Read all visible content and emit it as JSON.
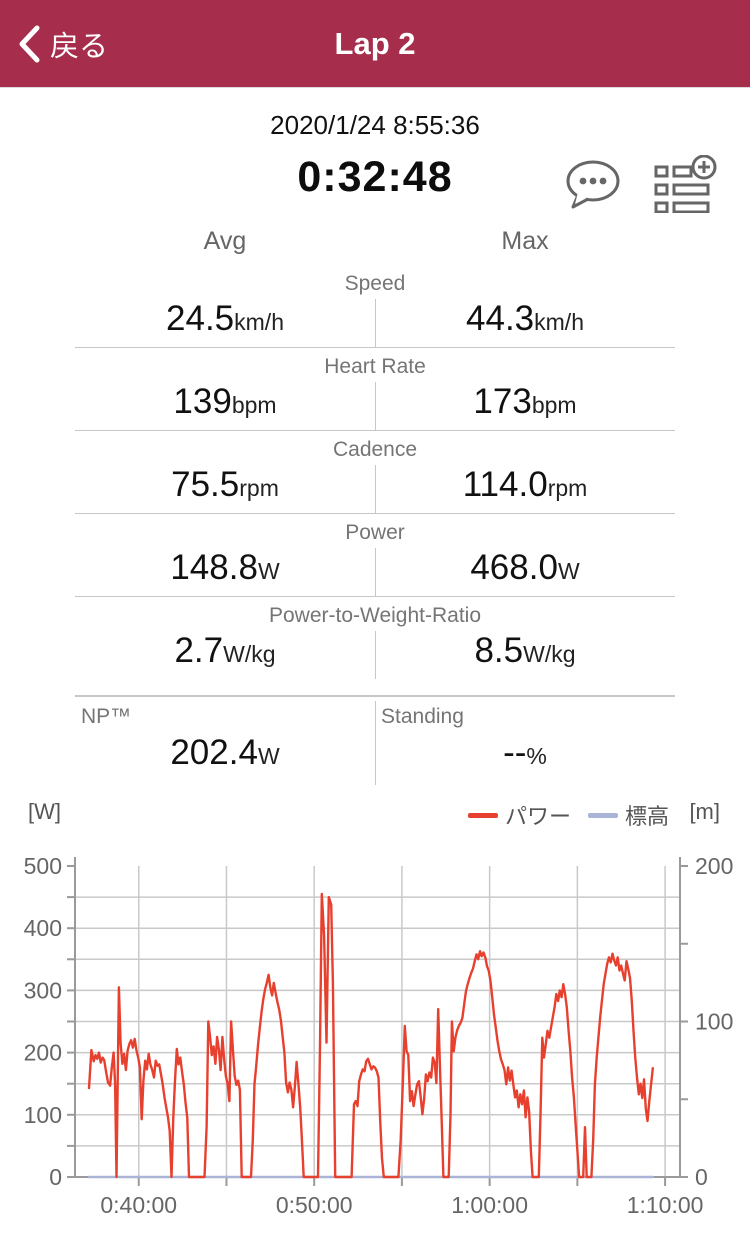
{
  "header": {
    "back_label": "戻る",
    "title": "Lap 2"
  },
  "summary": {
    "datetime": "2020/1/24 8:55:36",
    "duration": "0:32:48"
  },
  "columns": {
    "avg": "Avg",
    "max": "Max"
  },
  "metrics": [
    {
      "label": "Speed",
      "avg": "24.5",
      "avg_unit": "km/h",
      "max": "44.3",
      "max_unit": "km/h"
    },
    {
      "label": "Heart Rate",
      "avg": "139",
      "avg_unit": "bpm",
      "max": "173",
      "max_unit": "bpm"
    },
    {
      "label": "Cadence",
      "avg": "75.5",
      "avg_unit": "rpm",
      "max": "114.0",
      "max_unit": "rpm"
    },
    {
      "label": "Power",
      "avg": "148.8",
      "avg_unit": "W",
      "max": "468.0",
      "max_unit": "W"
    },
    {
      "label": "Power-to-Weight-Ratio",
      "avg": "2.7",
      "avg_unit": "W/kg",
      "max": "8.5",
      "max_unit": "W/kg"
    }
  ],
  "extra": {
    "np_label": "NP™",
    "np_value": "202.4",
    "np_unit": "W",
    "standing_label": "Standing",
    "standing_value": "--",
    "standing_unit": "%"
  },
  "icons": {
    "comment": "comment-bubble",
    "add_lap_field": "list-add"
  },
  "colors": {
    "header_bg": "#a62d4c",
    "power_line": "#e8402e",
    "elevation_line": "#a9b4d6",
    "gridline": "#c9c9c9",
    "axis": "#9a9a9a"
  },
  "chart_data": {
    "type": "line",
    "left_axis": {
      "label": "[W]",
      "min": 0,
      "max": 500,
      "major_ticks": [
        0,
        100,
        200,
        300,
        400,
        500
      ],
      "gridline_step": 50
    },
    "right_axis": {
      "label": "[m]",
      "min": 0,
      "max": 200,
      "labeled_ticks": [
        0,
        100,
        200
      ],
      "tick_step": 50
    },
    "x_axis": {
      "labels": [
        "0:40:00",
        "0:50:00",
        "1:00:00",
        "1:10:00"
      ],
      "label_seconds": [
        2400,
        3000,
        3600,
        4200
      ],
      "gridline_step_seconds": 300,
      "domain_seconds": [
        2182,
        4251
      ]
    },
    "legend": [
      {
        "name": "パワー",
        "color": "#e8402e"
      },
      {
        "name": "標高",
        "color": "#a9b4d6"
      }
    ],
    "series": [
      {
        "name": "パワー",
        "unit": "W",
        "color": "#e8402e",
        "points": [
          [
            2230,
            143
          ],
          [
            2238,
            204
          ],
          [
            2246,
            186
          ],
          [
            2252,
            196
          ],
          [
            2258,
            190
          ],
          [
            2264,
            200
          ],
          [
            2270,
            184
          ],
          [
            2276,
            192
          ],
          [
            2282,
            188
          ],
          [
            2288,
            170
          ],
          [
            2295,
            152
          ],
          [
            2302,
            147
          ],
          [
            2308,
            176
          ],
          [
            2314,
            200
          ],
          [
            2319,
            150
          ],
          [
            2324,
            0
          ],
          [
            2332,
            305
          ],
          [
            2338,
            215
          ],
          [
            2344,
            182
          ],
          [
            2350,
            198
          ],
          [
            2356,
            172
          ],
          [
            2362,
            203
          ],
          [
            2368,
            214
          ],
          [
            2374,
            220
          ],
          [
            2380,
            208
          ],
          [
            2386,
            222
          ],
          [
            2392,
            204
          ],
          [
            2398,
            192
          ],
          [
            2404,
            176
          ],
          [
            2410,
            93
          ],
          [
            2416,
            155
          ],
          [
            2422,
            187
          ],
          [
            2428,
            173
          ],
          [
            2434,
            198
          ],
          [
            2440,
            181
          ],
          [
            2446,
            172
          ],
          [
            2452,
            160
          ],
          [
            2458,
            187
          ],
          [
            2464,
            179
          ],
          [
            2470,
            181
          ],
          [
            2476,
            165
          ],
          [
            2482,
            149
          ],
          [
            2488,
            128
          ],
          [
            2494,
            112
          ],
          [
            2500,
            96
          ],
          [
            2506,
            74
          ],
          [
            2512,
            0
          ],
          [
            2518,
            96
          ],
          [
            2524,
            155
          ],
          [
            2530,
            206
          ],
          [
            2536,
            181
          ],
          [
            2542,
            192
          ],
          [
            2548,
            170
          ],
          [
            2554,
            149
          ],
          [
            2560,
            120
          ],
          [
            2566,
            95
          ],
          [
            2572,
            0
          ],
          [
            2600,
            0
          ],
          [
            2625,
            0
          ],
          [
            2632,
            80
          ],
          [
            2638,
            250
          ],
          [
            2644,
            225
          ],
          [
            2650,
            196
          ],
          [
            2656,
            210
          ],
          [
            2662,
            182
          ],
          [
            2668,
            225
          ],
          [
            2674,
            205
          ],
          [
            2680,
            172
          ],
          [
            2686,
            225
          ],
          [
            2692,
            190
          ],
          [
            2698,
            162
          ],
          [
            2704,
            150
          ],
          [
            2710,
            122
          ],
          [
            2716,
            250
          ],
          [
            2722,
            205
          ],
          [
            2728,
            162
          ],
          [
            2734,
            148
          ],
          [
            2740,
            155
          ],
          [
            2746,
            140
          ],
          [
            2752,
            0
          ],
          [
            2770,
            0
          ],
          [
            2784,
            0
          ],
          [
            2790,
            60
          ],
          [
            2796,
            150
          ],
          [
            2802,
            180
          ],
          [
            2808,
            212
          ],
          [
            2814,
            240
          ],
          [
            2820,
            266
          ],
          [
            2826,
            286
          ],
          [
            2832,
            302
          ],
          [
            2838,
            312
          ],
          [
            2844,
            325
          ],
          [
            2850,
            305
          ],
          [
            2856,
            292
          ],
          [
            2862,
            312
          ],
          [
            2868,
            296
          ],
          [
            2874,
            282
          ],
          [
            2880,
            270
          ],
          [
            2886,
            252
          ],
          [
            2892,
            226
          ],
          [
            2898,
            200
          ],
          [
            2904,
            152
          ],
          [
            2910,
            136
          ],
          [
            2916,
            152
          ],
          [
            2922,
            140
          ],
          [
            2928,
            112
          ],
          [
            2934,
            146
          ],
          [
            2940,
            185
          ],
          [
            2946,
            150
          ],
          [
            2952,
            112
          ],
          [
            2958,
            60
          ],
          [
            2964,
            0
          ],
          [
            2985,
            0
          ],
          [
            3013,
            0
          ],
          [
            3020,
            210
          ],
          [
            3026,
            455
          ],
          [
            3034,
            388
          ],
          [
            3042,
            216
          ],
          [
            3050,
            450
          ],
          [
            3058,
            438
          ],
          [
            3064,
            312
          ],
          [
            3072,
            0
          ],
          [
            3100,
            0
          ],
          [
            3128,
            0
          ],
          [
            3136,
            117
          ],
          [
            3142,
            122
          ],
          [
            3148,
            114
          ],
          [
            3154,
            154
          ],
          [
            3160,
            165
          ],
          [
            3166,
            173
          ],
          [
            3172,
            170
          ],
          [
            3178,
            186
          ],
          [
            3184,
            190
          ],
          [
            3190,
            181
          ],
          [
            3196,
            173
          ],
          [
            3202,
            178
          ],
          [
            3208,
            176
          ],
          [
            3214,
            170
          ],
          [
            3220,
            160
          ],
          [
            3226,
            87
          ],
          [
            3232,
            30
          ],
          [
            3238,
            0
          ],
          [
            3262,
            0
          ],
          [
            3288,
            0
          ],
          [
            3296,
            60
          ],
          [
            3303,
            150
          ],
          [
            3310,
            243
          ],
          [
            3316,
            202
          ],
          [
            3322,
            196
          ],
          [
            3328,
            122
          ],
          [
            3334,
            138
          ],
          [
            3340,
            114
          ],
          [
            3346,
            133
          ],
          [
            3352,
            149
          ],
          [
            3358,
            154
          ],
          [
            3364,
            130
          ],
          [
            3370,
            101
          ],
          [
            3376,
            125
          ],
          [
            3382,
            165
          ],
          [
            3388,
            154
          ],
          [
            3394,
            168
          ],
          [
            3400,
            160
          ],
          [
            3406,
            192
          ],
          [
            3412,
            184
          ],
          [
            3418,
            151
          ],
          [
            3424,
            270
          ],
          [
            3430,
            180
          ],
          [
            3436,
            90
          ],
          [
            3442,
            0
          ],
          [
            3452,
            0
          ],
          [
            3460,
            0
          ],
          [
            3466,
            100
          ],
          [
            3471,
            250
          ],
          [
            3477,
            202
          ],
          [
            3483,
            224
          ],
          [
            3489,
            236
          ],
          [
            3495,
            243
          ],
          [
            3501,
            248
          ],
          [
            3507,
            256
          ],
          [
            3513,
            278
          ],
          [
            3519,
            299
          ],
          [
            3525,
            310
          ],
          [
            3531,
            320
          ],
          [
            3537,
            328
          ],
          [
            3543,
            335
          ],
          [
            3549,
            347
          ],
          [
            3555,
            358
          ],
          [
            3561,
            350
          ],
          [
            3567,
            363
          ],
          [
            3573,
            355
          ],
          [
            3579,
            361
          ],
          [
            3585,
            353
          ],
          [
            3591,
            339
          ],
          [
            3597,
            331
          ],
          [
            3603,
            315
          ],
          [
            3609,
            288
          ],
          [
            3615,
            261
          ],
          [
            3621,
            240
          ],
          [
            3627,
            219
          ],
          [
            3633,
            202
          ],
          [
            3639,
            189
          ],
          [
            3645,
            181
          ],
          [
            3651,
            171
          ],
          [
            3657,
            149
          ],
          [
            3663,
            176
          ],
          [
            3669,
            155
          ],
          [
            3675,
            171
          ],
          [
            3681,
            149
          ],
          [
            3687,
            128
          ],
          [
            3693,
            139
          ],
          [
            3699,
            112
          ],
          [
            3705,
            133
          ],
          [
            3711,
            117
          ],
          [
            3717,
            139
          ],
          [
            3723,
            96
          ],
          [
            3729,
            128
          ],
          [
            3735,
            106
          ],
          [
            3741,
            42
          ],
          [
            3747,
            0
          ],
          [
            3760,
            0
          ],
          [
            3768,
            0
          ],
          [
            3774,
            100
          ],
          [
            3780,
            224
          ],
          [
            3786,
            192
          ],
          [
            3792,
            214
          ],
          [
            3798,
            235
          ],
          [
            3804,
            224
          ],
          [
            3810,
            240
          ],
          [
            3816,
            257
          ],
          [
            3822,
            273
          ],
          [
            3828,
            294
          ],
          [
            3834,
            283
          ],
          [
            3840,
            300
          ],
          [
            3846,
            289
          ],
          [
            3852,
            310
          ],
          [
            3858,
            294
          ],
          [
            3864,
            273
          ],
          [
            3870,
            235
          ],
          [
            3876,
            203
          ],
          [
            3882,
            160
          ],
          [
            3888,
            128
          ],
          [
            3894,
            85
          ],
          [
            3900,
            42
          ],
          [
            3906,
            0
          ],
          [
            3914,
            0
          ],
          [
            3920,
            0
          ],
          [
            3926,
            80
          ],
          [
            3932,
            0
          ],
          [
            3940,
            0
          ],
          [
            3948,
            0
          ],
          [
            3954,
            60
          ],
          [
            3960,
            149
          ],
          [
            3966,
            192
          ],
          [
            3972,
            224
          ],
          [
            3978,
            257
          ],
          [
            3984,
            283
          ],
          [
            3990,
            310
          ],
          [
            3996,
            326
          ],
          [
            4002,
            343
          ],
          [
            4008,
            353
          ],
          [
            4014,
            345
          ],
          [
            4020,
            359
          ],
          [
            4026,
            348
          ],
          [
            4032,
            340
          ],
          [
            4038,
            353
          ],
          [
            4044,
            332
          ],
          [
            4050,
            340
          ],
          [
            4056,
            327
          ],
          [
            4062,
            316
          ],
          [
            4068,
            347
          ],
          [
            4074,
            335
          ],
          [
            4080,
            320
          ],
          [
            4086,
            283
          ],
          [
            4092,
            235
          ],
          [
            4098,
            191
          ],
          [
            4104,
            160
          ],
          [
            4110,
            133
          ],
          [
            4116,
            150
          ],
          [
            4122,
            127
          ],
          [
            4128,
            157
          ],
          [
            4134,
            110
          ],
          [
            4140,
            90
          ],
          [
            4146,
            122
          ],
          [
            4152,
            149
          ],
          [
            4158,
            175
          ]
        ]
      },
      {
        "name": "標高",
        "unit": "m",
        "color": "#a9b4d6",
        "points": [
          [
            2230,
            0
          ],
          [
            4158,
            0
          ]
        ]
      }
    ]
  }
}
